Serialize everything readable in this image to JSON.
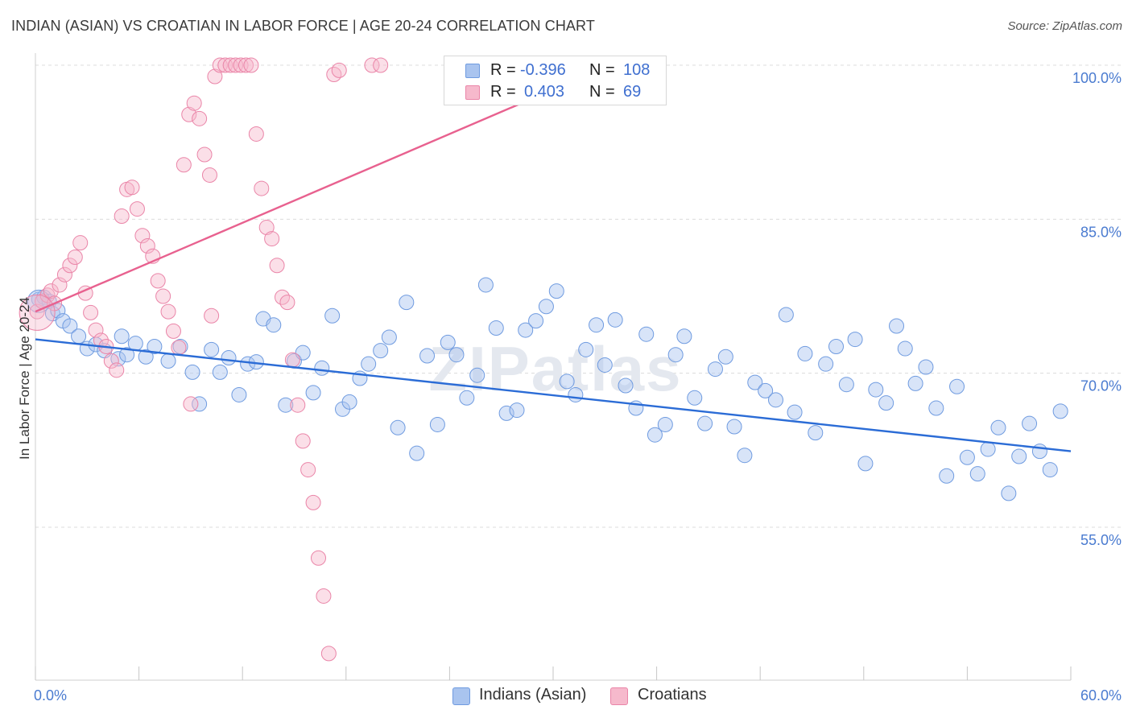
{
  "title": "INDIAN (ASIAN) VS CROATIAN IN LABOR FORCE | AGE 20-24 CORRELATION CHART",
  "source": "Source: ZipAtlas.com",
  "watermark": "ZIPatlas",
  "legend": {
    "r_label": "R =",
    "n_label": "N =",
    "rows": [
      {
        "name": "Indians (Asian)",
        "r": "-0.396",
        "n": "108",
        "color": "#a9c4ef",
        "edge": "#6f9be0"
      },
      {
        "name": "Croatians",
        "r": "0.403",
        "n": "69",
        "color": "#f6b9cc",
        "edge": "#ea85a8"
      }
    ]
  },
  "chart_data": {
    "type": "scatter",
    "title": "INDIAN (ASIAN) VS CROATIAN IN LABOR FORCE | AGE 20-24 CORRELATION CHART",
    "xlabel": "",
    "ylabel": "In Labor Force | Age 20-24",
    "xlim": [
      0,
      60
    ],
    "ylim": [
      40,
      101.5
    ],
    "x_tick_labels": [
      "0.0%",
      "60.0%"
    ],
    "y_ticks": [
      55,
      70,
      85,
      100
    ],
    "y_tick_labels": [
      "55.0%",
      "70.0%",
      "85.0%",
      "100.0%"
    ],
    "grid": true,
    "legend_position": "top-center",
    "series": [
      {
        "name": "Indians (Asian)",
        "color": "#6f9be0",
        "trend": {
          "x": [
            0,
            60
          ],
          "y": [
            73.3,
            62.4
          ],
          "color": "#2b6cd6"
        },
        "points": [
          [
            0.2,
            77.2
          ],
          [
            0.5,
            77.4
          ],
          [
            0.8,
            77.0
          ],
          [
            1.0,
            75.8
          ],
          [
            1.3,
            76.1
          ],
          [
            1.6,
            75.1
          ],
          [
            2.0,
            74.6
          ],
          [
            2.5,
            73.6
          ],
          [
            3.0,
            72.4
          ],
          [
            3.5,
            72.8
          ],
          [
            4.0,
            72.2
          ],
          [
            4.8,
            71.4
          ],
          [
            5.3,
            71.8
          ],
          [
            5.8,
            72.9
          ],
          [
            6.4,
            71.6
          ],
          [
            6.9,
            72.6
          ],
          [
            7.7,
            71.2
          ],
          [
            8.4,
            72.6
          ],
          [
            9.1,
            70.1
          ],
          [
            9.5,
            67.0
          ],
          [
            10.2,
            72.3
          ],
          [
            10.7,
            70.1
          ],
          [
            11.2,
            71.5
          ],
          [
            11.8,
            67.9
          ],
          [
            12.3,
            70.9
          ],
          [
            12.8,
            71.1
          ],
          [
            13.2,
            75.3
          ],
          [
            13.8,
            74.7
          ],
          [
            14.5,
            66.9
          ],
          [
            15.0,
            71.2
          ],
          [
            15.5,
            72.0
          ],
          [
            16.1,
            68.1
          ],
          [
            16.6,
            70.5
          ],
          [
            17.2,
            75.6
          ],
          [
            17.8,
            66.5
          ],
          [
            18.2,
            67.2
          ],
          [
            18.8,
            69.5
          ],
          [
            19.3,
            70.9
          ],
          [
            20.0,
            72.2
          ],
          [
            20.5,
            73.5
          ],
          [
            21.0,
            64.7
          ],
          [
            21.5,
            76.9
          ],
          [
            22.1,
            62.2
          ],
          [
            22.7,
            71.7
          ],
          [
            23.3,
            65.0
          ],
          [
            23.9,
            73.0
          ],
          [
            24.4,
            71.8
          ],
          [
            25.0,
            67.6
          ],
          [
            25.6,
            69.8
          ],
          [
            26.1,
            78.6
          ],
          [
            26.7,
            74.4
          ],
          [
            27.3,
            66.1
          ],
          [
            27.9,
            66.4
          ],
          [
            28.4,
            74.2
          ],
          [
            29.0,
            75.1
          ],
          [
            29.6,
            76.5
          ],
          [
            30.2,
            78.0
          ],
          [
            30.8,
            69.2
          ],
          [
            31.3,
            67.9
          ],
          [
            31.9,
            72.3
          ],
          [
            32.5,
            74.7
          ],
          [
            33.0,
            70.8
          ],
          [
            33.6,
            75.2
          ],
          [
            34.2,
            68.8
          ],
          [
            34.8,
            66.6
          ],
          [
            35.4,
            73.8
          ],
          [
            35.9,
            64.0
          ],
          [
            36.5,
            65.0
          ],
          [
            37.1,
            71.8
          ],
          [
            37.6,
            73.6
          ],
          [
            38.2,
            67.6
          ],
          [
            38.8,
            65.1
          ],
          [
            39.4,
            70.4
          ],
          [
            40.0,
            71.6
          ],
          [
            40.5,
            64.8
          ],
          [
            41.1,
            62.0
          ],
          [
            41.7,
            69.1
          ],
          [
            42.3,
            68.3
          ],
          [
            42.9,
            67.4
          ],
          [
            43.5,
            75.7
          ],
          [
            44.0,
            66.2
          ],
          [
            44.6,
            71.9
          ],
          [
            45.2,
            64.2
          ],
          [
            45.8,
            70.9
          ],
          [
            46.4,
            72.6
          ],
          [
            47.0,
            68.9
          ],
          [
            47.5,
            73.3
          ],
          [
            48.1,
            61.2
          ],
          [
            48.7,
            68.4
          ],
          [
            49.3,
            67.1
          ],
          [
            49.9,
            74.6
          ],
          [
            50.4,
            72.4
          ],
          [
            51.0,
            69.0
          ],
          [
            51.6,
            70.6
          ],
          [
            52.2,
            66.6
          ],
          [
            52.8,
            60.0
          ],
          [
            53.4,
            68.7
          ],
          [
            54.0,
            61.8
          ],
          [
            54.6,
            60.2
          ],
          [
            55.2,
            62.6
          ],
          [
            55.8,
            64.7
          ],
          [
            56.4,
            58.3
          ],
          [
            57.0,
            61.9
          ],
          [
            57.6,
            65.1
          ],
          [
            58.2,
            62.4
          ],
          [
            58.8,
            60.6
          ],
          [
            59.4,
            66.3
          ],
          [
            5.0,
            73.6
          ]
        ]
      },
      {
        "name": "Croatians",
        "color": "#ea85a8",
        "trend": {
          "x": [
            0,
            33.3
          ],
          "y": [
            76.0,
            100.0
          ],
          "color": "#e8618f"
        },
        "points": [
          [
            0.1,
            76.0
          ],
          [
            0.4,
            77.0
          ],
          [
            0.7,
            77.6
          ],
          [
            0.9,
            78.0
          ],
          [
            1.1,
            76.8
          ],
          [
            1.4,
            78.6
          ],
          [
            1.7,
            79.6
          ],
          [
            2.0,
            80.5
          ],
          [
            2.3,
            81.3
          ],
          [
            2.6,
            82.7
          ],
          [
            2.9,
            77.8
          ],
          [
            3.2,
            75.9
          ],
          [
            3.5,
            74.2
          ],
          [
            3.8,
            73.2
          ],
          [
            4.1,
            72.6
          ],
          [
            4.4,
            71.2
          ],
          [
            4.7,
            70.3
          ],
          [
            5.0,
            85.3
          ],
          [
            5.3,
            87.9
          ],
          [
            5.6,
            88.1
          ],
          [
            5.9,
            86.0
          ],
          [
            6.2,
            83.4
          ],
          [
            6.5,
            82.4
          ],
          [
            6.8,
            81.4
          ],
          [
            7.1,
            79.0
          ],
          [
            7.4,
            77.5
          ],
          [
            7.7,
            76.0
          ],
          [
            8.0,
            74.1
          ],
          [
            8.3,
            72.5
          ],
          [
            8.6,
            90.3
          ],
          [
            8.9,
            95.2
          ],
          [
            9.2,
            96.3
          ],
          [
            9.5,
            94.8
          ],
          [
            9.8,
            91.3
          ],
          [
            10.1,
            89.3
          ],
          [
            10.4,
            98.9
          ],
          [
            10.7,
            100.0
          ],
          [
            11.0,
            100.0
          ],
          [
            11.3,
            100.0
          ],
          [
            11.6,
            100.0
          ],
          [
            11.9,
            100.0
          ],
          [
            12.2,
            100.0
          ],
          [
            12.5,
            100.0
          ],
          [
            12.8,
            93.3
          ],
          [
            13.1,
            88.0
          ],
          [
            13.4,
            84.2
          ],
          [
            13.7,
            83.1
          ],
          [
            14.0,
            80.5
          ],
          [
            14.3,
            77.4
          ],
          [
            14.6,
            76.9
          ],
          [
            14.9,
            71.3
          ],
          [
            15.2,
            66.9
          ],
          [
            15.5,
            63.4
          ],
          [
            15.8,
            60.6
          ],
          [
            16.1,
            57.4
          ],
          [
            16.4,
            52.0
          ],
          [
            16.7,
            48.3
          ],
          [
            17.0,
            42.7
          ],
          [
            17.3,
            99.1
          ],
          [
            17.6,
            99.5
          ],
          [
            19.5,
            100.0
          ],
          [
            20.0,
            100.0
          ],
          [
            28.0,
            100.0
          ],
          [
            28.6,
            100.0
          ],
          [
            31.5,
            100.0
          ],
          [
            32.6,
            100.0
          ],
          [
            33.3,
            100.0
          ],
          [
            9.0,
            67.0
          ],
          [
            10.2,
            75.6
          ]
        ]
      }
    ]
  }
}
